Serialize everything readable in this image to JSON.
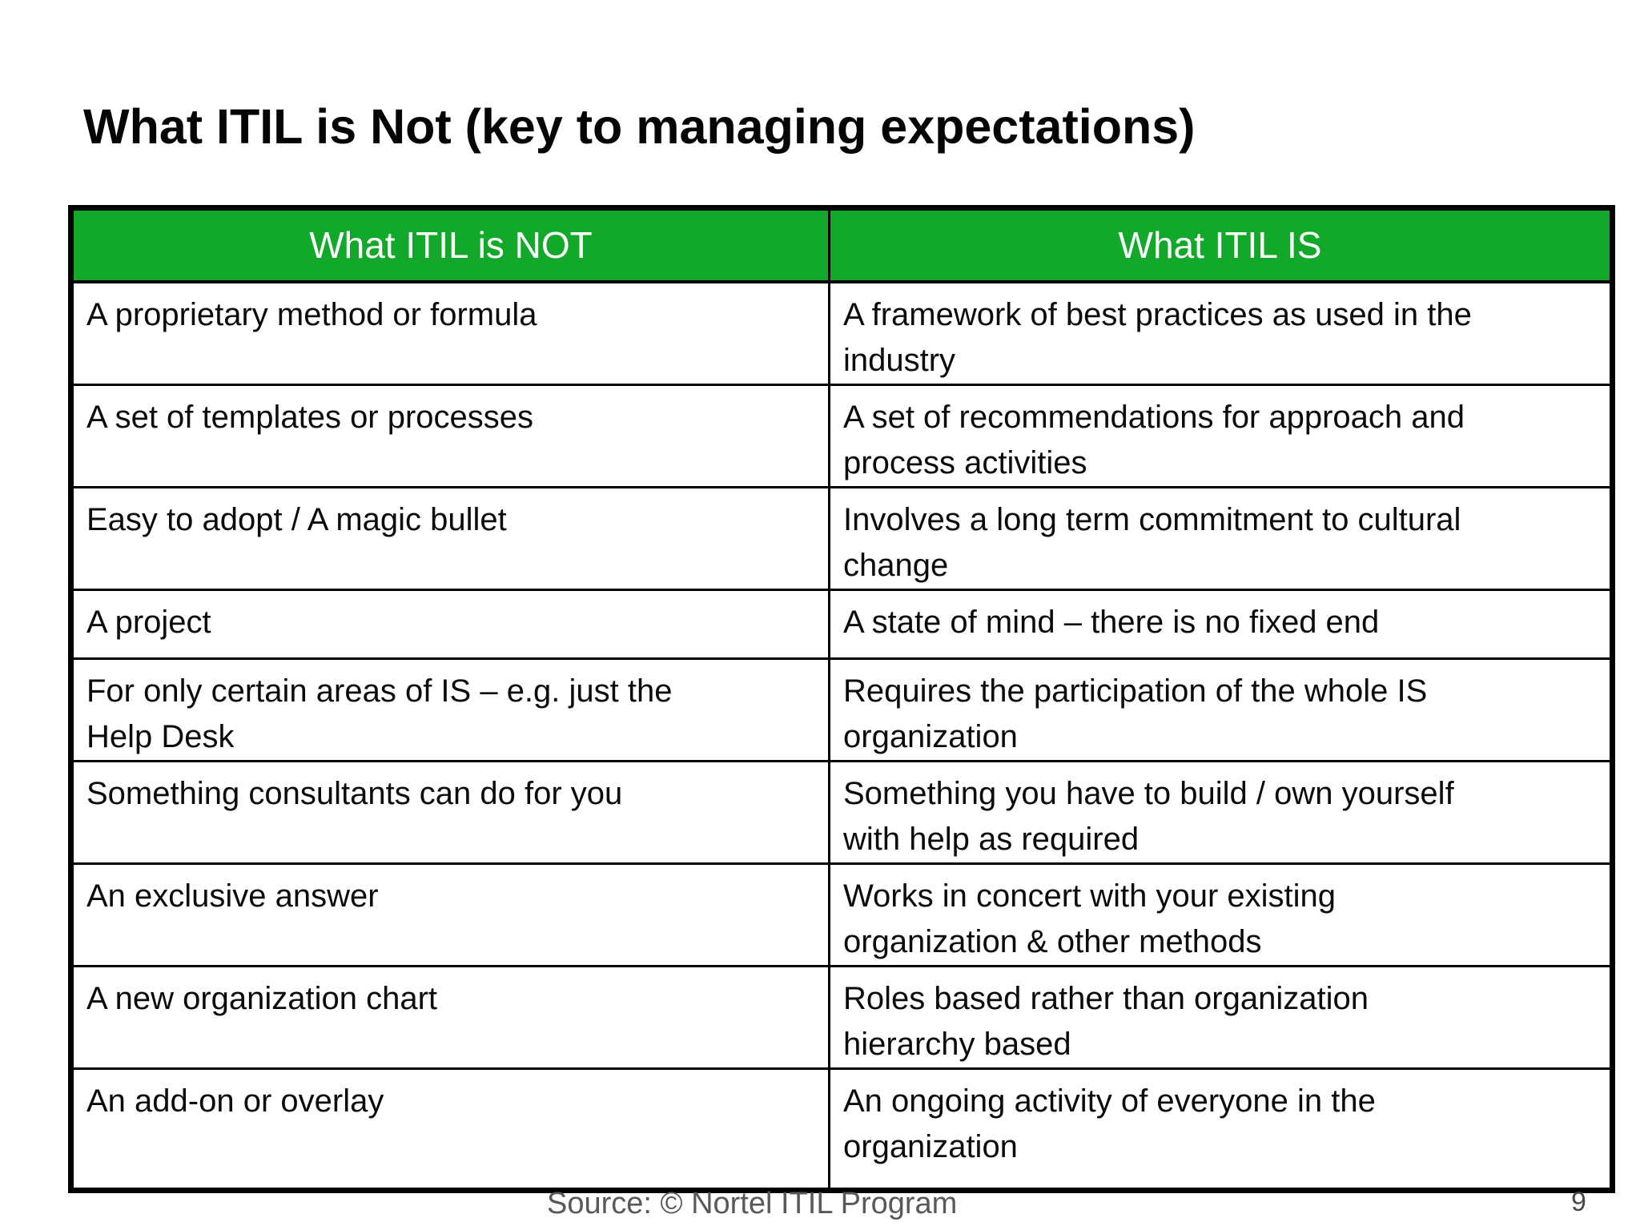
{
  "page_title": "What ITIL is Not (key to managing expectations)",
  "table": {
    "headers": {
      "not": "What ITIL is NOT",
      "is": "What ITIL IS"
    },
    "rows": [
      {
        "not": "A proprietary method or formula",
        "is": "A framework of best practices as used in the\nindustry"
      },
      {
        "not": "A set of templates or processes",
        "is": "A set of recommendations for approach and\nprocess activities"
      },
      {
        "not": "Easy to adopt / A magic bullet",
        "is": "Involves a long term commitment to cultural\nchange"
      },
      {
        "not": "A project",
        "is": "A state of mind – there is no fixed end"
      },
      {
        "not": "For only certain areas of IS – e.g. just the\nHelp Desk",
        "is": "Requires the participation of the whole IS\norganization"
      },
      {
        "not": "Something consultants can do for you",
        "is": "Something you have to build / own yourself\nwith help as required"
      },
      {
        "not": "An exclusive answer",
        "is": "Works in concert with your existing\norganization & other methods"
      },
      {
        "not": "A new organization chart",
        "is": "Roles based rather than organization\nhierarchy based"
      },
      {
        "not": "An add-on or overlay",
        "is": "An ongoing activity of everyone in the\norganization"
      }
    ]
  },
  "footer": {
    "source": "Source: © Nortel ITIL Program",
    "page_number": "9"
  },
  "colors": {
    "header_green": "#12A92B",
    "header_text": "#FFFFFF",
    "body_text": "#0B0B0B",
    "border": "#000000",
    "footer_text": "#595959"
  }
}
